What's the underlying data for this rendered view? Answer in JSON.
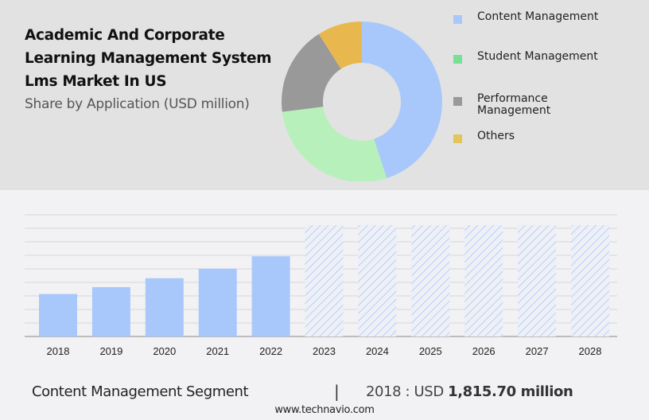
{
  "header": {
    "title": "Academic And Corporate Learning Management System Lms Market In US",
    "subtitle": "Share by Application (USD million)"
  },
  "chart_data": [
    {
      "type": "pie",
      "variant": "donut",
      "title": "Share by Application (USD million)",
      "categories": [
        "Content Management",
        "Student Management",
        "Performance Management",
        "Others"
      ],
      "values": [
        45,
        28,
        18,
        9
      ],
      "value_unit": "percent (estimated)",
      "colors": [
        "#a8c8fc",
        "#b7f0ba",
        "#999999",
        "#e8b84e"
      ],
      "legend": {
        "placement": "right",
        "items": [
          {
            "label": "Content Management",
            "color": "#a8c8fc"
          },
          {
            "label": "Student Management",
            "color": "#77e095"
          },
          {
            "label": "Performance Management",
            "color": "#999999"
          },
          {
            "label": "Others",
            "color": "#e2c65a"
          }
        ]
      }
    },
    {
      "type": "bar",
      "title": "Content Management Segment",
      "categories": [
        "2018",
        "2019",
        "2020",
        "2021",
        "2022",
        "2023",
        "2024",
        "2025",
        "2026",
        "2027",
        "2028"
      ],
      "values": [
        1815.7,
        2108,
        2489,
        2899,
        3426,
        null,
        null,
        null,
        null,
        null,
        null
      ],
      "forecast_from": "2023",
      "forecast_style": "hatched",
      "ylim": [
        0,
        5200
      ],
      "grid": true,
      "gridlines": 9,
      "xlabel": "",
      "ylabel": "",
      "bar_color": "#a8c8fc"
    }
  ],
  "footer": {
    "segment_label": "Content Management Segment",
    "divider": "|",
    "value_prefix": "2018 : USD ",
    "value_bold": "1,815.70 million",
    "source": "www.technavio.com"
  }
}
